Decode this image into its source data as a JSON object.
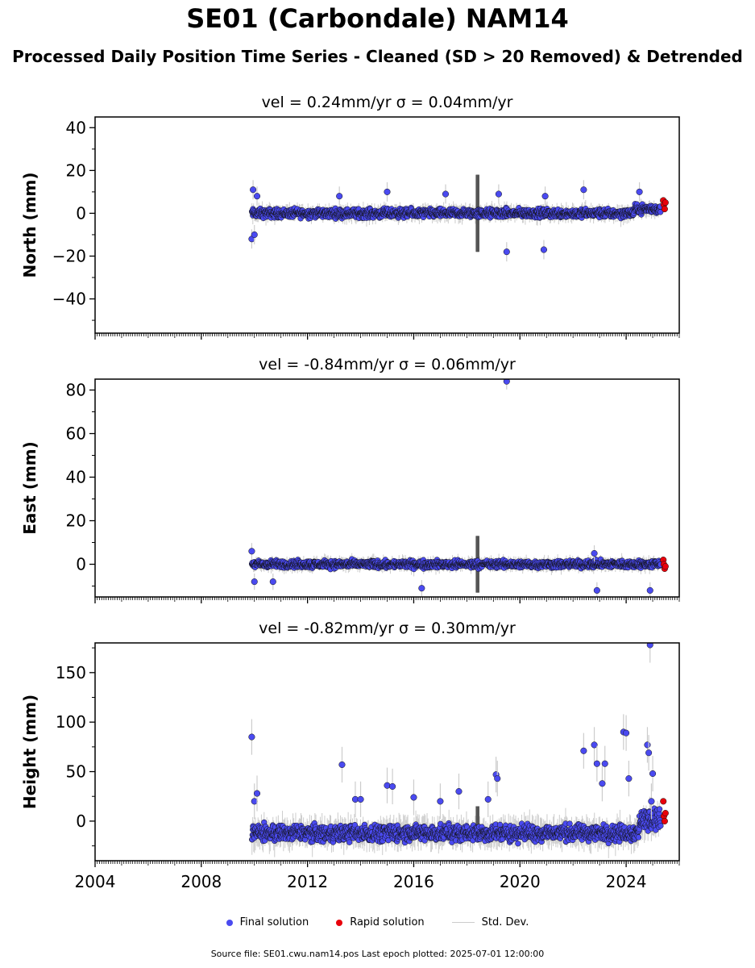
{
  "title": "SE01 (Carbondale) NAM14",
  "subtitle": "Processed Daily Position Time Series - Cleaned (SD > 20 Removed) & Detrended",
  "colors": {
    "final": "#4a4af0",
    "rapid": "#e8000b",
    "stddev": "#cccccc",
    "outline": "#111111"
  },
  "legend": {
    "final_label": "Final solution",
    "rapid_label": "Rapid solution",
    "stddev_label": "Std. Dev."
  },
  "footer": "Source file: SE01.cwu.nam14.pos  Last epoch plotted: 2025-07-01 12:00:00",
  "chart_data": [
    {
      "type": "scatter",
      "title": "vel = 0.24mm/yr   σ = 0.04mm/yr",
      "ylabel": "North (mm)",
      "xlim": [
        2004.0,
        2026.0
      ],
      "ylim": [
        -56,
        45
      ],
      "yticks": [
        40,
        20,
        0,
        -20,
        -40
      ],
      "xticks": [
        2004,
        2008,
        2012,
        2016,
        2020,
        2024
      ],
      "show_xticklabels": false,
      "series_final": {
        "x": [
          2009.9,
          2009.95,
          2010.0,
          2010.1,
          2013.2,
          2015.0,
          2017.2,
          2019.2,
          2019.5,
          2020.9,
          2020.95,
          2022.4,
          2024.5
        ],
        "y": [
          -12,
          11,
          -10,
          8,
          8,
          10,
          9,
          9,
          -18,
          -17,
          8,
          11,
          10
        ]
      },
      "series_rapid": {
        "x": [
          2025.4,
          2025.42,
          2025.45,
          2025.48
        ],
        "y": [
          6,
          4,
          2,
          5
        ]
      },
      "noise": {
        "start": 2009.9,
        "end": 2025.3,
        "amp": 3
      }
    },
    {
      "type": "scatter",
      "title": "vel = -0.84mm/yr   σ = 0.06mm/yr",
      "ylabel": "East (mm)",
      "xlim": [
        2004.0,
        2026.0
      ],
      "ylim": [
        -15,
        85
      ],
      "yticks": [
        80,
        60,
        40,
        20,
        0
      ],
      "xticks": [
        2004,
        2008,
        2012,
        2016,
        2020,
        2024
      ],
      "show_xticklabels": false,
      "series_final": {
        "x": [
          2009.9,
          2010.0,
          2010.7,
          2016.3,
          2019.5,
          2022.8,
          2022.9,
          2024.9
        ],
        "y": [
          6,
          -8,
          -8,
          -11,
          84,
          5,
          -12,
          -12
        ]
      },
      "series_rapid": {
        "x": [
          2025.4,
          2025.42,
          2025.45,
          2025.48
        ],
        "y": [
          2,
          0,
          -2,
          -1
        ]
      },
      "noise": {
        "start": 2009.9,
        "end": 2025.3,
        "amp": 2.5
      }
    },
    {
      "type": "scatter",
      "title": "vel = -0.82mm/yr   σ = 0.30mm/yr",
      "ylabel": "Height (mm)",
      "xlim": [
        2004.0,
        2026.0
      ],
      "ylim": [
        -40,
        180
      ],
      "yticks": [
        150,
        100,
        50,
        0
      ],
      "xticks": [
        2004,
        2008,
        2012,
        2016,
        2020,
        2024
      ],
      "show_xticklabels": true,
      "series_final": {
        "x": [
          2009.9,
          2010.0,
          2010.1,
          2013.3,
          2013.8,
          2014.0,
          2015.0,
          2015.2,
          2016.0,
          2017.0,
          2017.7,
          2018.8,
          2019.1,
          2019.15,
          2022.4,
          2022.8,
          2022.9,
          2023.1,
          2023.2,
          2023.9,
          2024.0,
          2024.1,
          2024.8,
          2024.85,
          2024.9,
          2025.0,
          2024.95
        ],
        "y": [
          85,
          20,
          28,
          57,
          22,
          22,
          36,
          35,
          24,
          20,
          30,
          22,
          47,
          43,
          71,
          77,
          58,
          38,
          58,
          90,
          89,
          43,
          77,
          69,
          178,
          48,
          20
        ]
      },
      "series_rapid": {
        "x": [
          2025.4,
          2025.42,
          2025.45,
          2025.48
        ],
        "y": [
          20,
          5,
          0,
          8
        ]
      },
      "noise": {
        "start": 2009.9,
        "end": 2025.3,
        "amp": 12
      }
    }
  ]
}
